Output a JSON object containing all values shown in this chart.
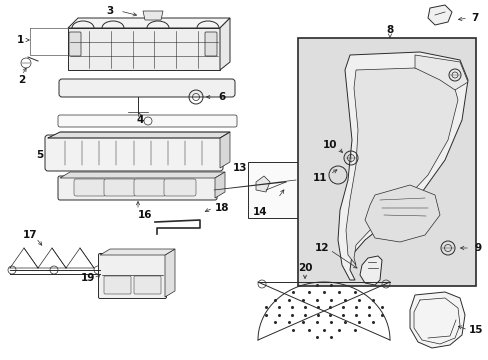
{
  "bg_color": "#ffffff",
  "lc": "#2a2a2a",
  "gray_fill": "#e8e8e8",
  "light_fill": "#f4f4f4",
  "panel_fill": "#dedede",
  "figw": 4.89,
  "figh": 3.6,
  "dpi": 100
}
